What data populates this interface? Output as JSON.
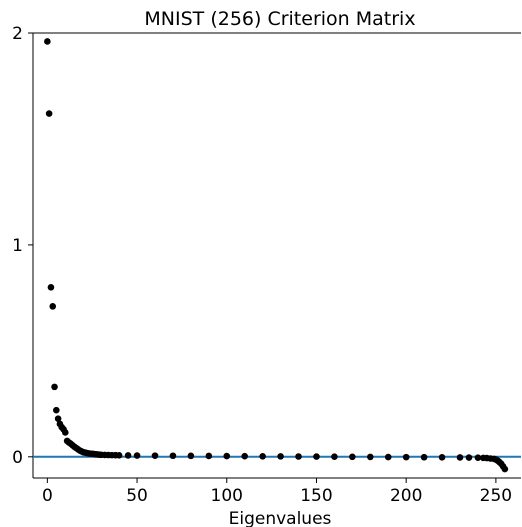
{
  "chart_data": {
    "type": "scatter",
    "title": "MNIST (256) Criterion Matrix",
    "xlabel": "Eigenvalues",
    "ylabel": "",
    "xlim": [
      -8,
      264
    ],
    "ylim": [
      -0.1,
      2.0
    ],
    "xticks": [
      0,
      50,
      100,
      150,
      200,
      250
    ],
    "yticks": [
      0,
      1,
      2
    ],
    "grid": false,
    "marker_color": "#000000",
    "hline": {
      "y": 0,
      "color": "#1f77b4"
    },
    "series": [
      {
        "points": [
          [
            0,
            1.96
          ],
          [
            1,
            1.62
          ],
          [
            2,
            0.8
          ],
          [
            3,
            0.71
          ],
          [
            4,
            0.33
          ],
          [
            5,
            0.22
          ],
          [
            6,
            0.18
          ],
          [
            7,
            0.155
          ],
          [
            8,
            0.14
          ],
          [
            9,
            0.13
          ],
          [
            10,
            0.115
          ],
          [
            11,
            0.075
          ],
          [
            12,
            0.068
          ],
          [
            13,
            0.062
          ],
          [
            14,
            0.055
          ],
          [
            15,
            0.048
          ],
          [
            16,
            0.042
          ],
          [
            17,
            0.036
          ],
          [
            18,
            0.03
          ],
          [
            19,
            0.026
          ],
          [
            20,
            0.022
          ],
          [
            21,
            0.02
          ],
          [
            22,
            0.018
          ],
          [
            23,
            0.016
          ],
          [
            24,
            0.015
          ],
          [
            25,
            0.014
          ],
          [
            26,
            0.013
          ],
          [
            27,
            0.012
          ],
          [
            28,
            0.011
          ],
          [
            29,
            0.01
          ],
          [
            30,
            0.0095
          ],
          [
            32,
            0.009
          ],
          [
            34,
            0.0085
          ],
          [
            36,
            0.008
          ],
          [
            38,
            0.0075
          ],
          [
            40,
            0.007
          ],
          [
            45,
            0.0065
          ],
          [
            50,
            0.006
          ],
          [
            60,
            0.0055
          ],
          [
            70,
            0.005
          ],
          [
            80,
            0.0045
          ],
          [
            90,
            0.004
          ],
          [
            100,
            0.0035
          ],
          [
            110,
            0.003
          ],
          [
            120,
            0.0025
          ],
          [
            130,
            0.002
          ],
          [
            140,
            0.0015
          ],
          [
            150,
            0.001
          ],
          [
            160,
            0.0005
          ],
          [
            170,
            0.0
          ],
          [
            180,
            -0.0005
          ],
          [
            190,
            -0.001
          ],
          [
            200,
            -0.0015
          ],
          [
            210,
            -0.002
          ],
          [
            220,
            -0.0025
          ],
          [
            230,
            -0.003
          ],
          [
            235,
            -0.0035
          ],
          [
            240,
            -0.004
          ],
          [
            243,
            -0.005
          ],
          [
            245,
            -0.006
          ],
          [
            247,
            -0.008
          ],
          [
            249,
            -0.01
          ],
          [
            250,
            -0.013
          ],
          [
            251,
            -0.018
          ],
          [
            252,
            -0.025
          ],
          [
            253,
            -0.033
          ],
          [
            254,
            -0.045
          ],
          [
            255,
            -0.058
          ]
        ]
      }
    ]
  }
}
